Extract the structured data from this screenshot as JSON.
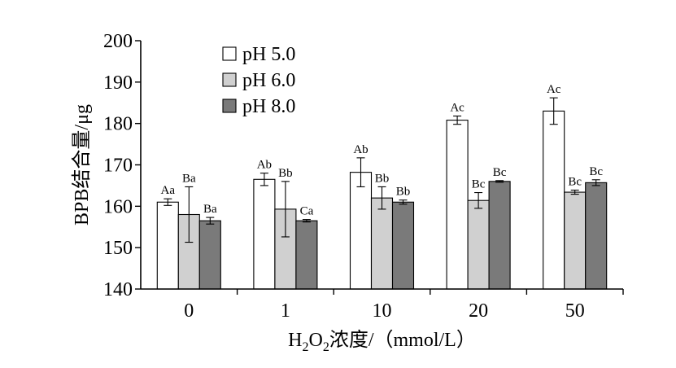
{
  "chart_data": {
    "type": "bar",
    "title": "",
    "xlabel": {
      "prefix": "H",
      "sub1": "2",
      "mid": "O",
      "sub2": "2",
      "suffix": "浓度/（mmol/L）"
    },
    "ylabel": "BPB结合量/μg",
    "ylim": [
      140,
      200
    ],
    "yticks": [
      "140",
      "150",
      "160",
      "170",
      "180",
      "190",
      "200"
    ],
    "categories": [
      "0",
      "1",
      "10",
      "20",
      "50"
    ],
    "legend_position": "top-left",
    "series": [
      {
        "name": "pH 5.0",
        "color": "#ffffff",
        "values": [
          161.0,
          166.5,
          168.2,
          180.8,
          183.0
        ],
        "errors": [
          0.8,
          1.5,
          3.5,
          1.0,
          3.2
        ],
        "labels": [
          "Aa",
          "Ab",
          "Ab",
          "Ac",
          "Ac"
        ]
      },
      {
        "name": "pH 6.0",
        "color": "#d0d0d0",
        "values": [
          158.0,
          159.3,
          162.0,
          161.4,
          163.4
        ],
        "errors": [
          6.7,
          6.7,
          2.7,
          1.9,
          0.5
        ],
        "labels": [
          "Ba",
          "Bb",
          "Bb",
          "Bc",
          "Bc"
        ]
      },
      {
        "name": "pH 8.0",
        "color": "#7a7a7a",
        "values": [
          156.5,
          156.5,
          161.0,
          166.0,
          165.7
        ],
        "errors": [
          0.8,
          0.3,
          0.5,
          0.2,
          0.7
        ],
        "labels": [
          "Ba",
          "Ca",
          "Bb",
          "Bc",
          "Bc"
        ]
      }
    ]
  }
}
